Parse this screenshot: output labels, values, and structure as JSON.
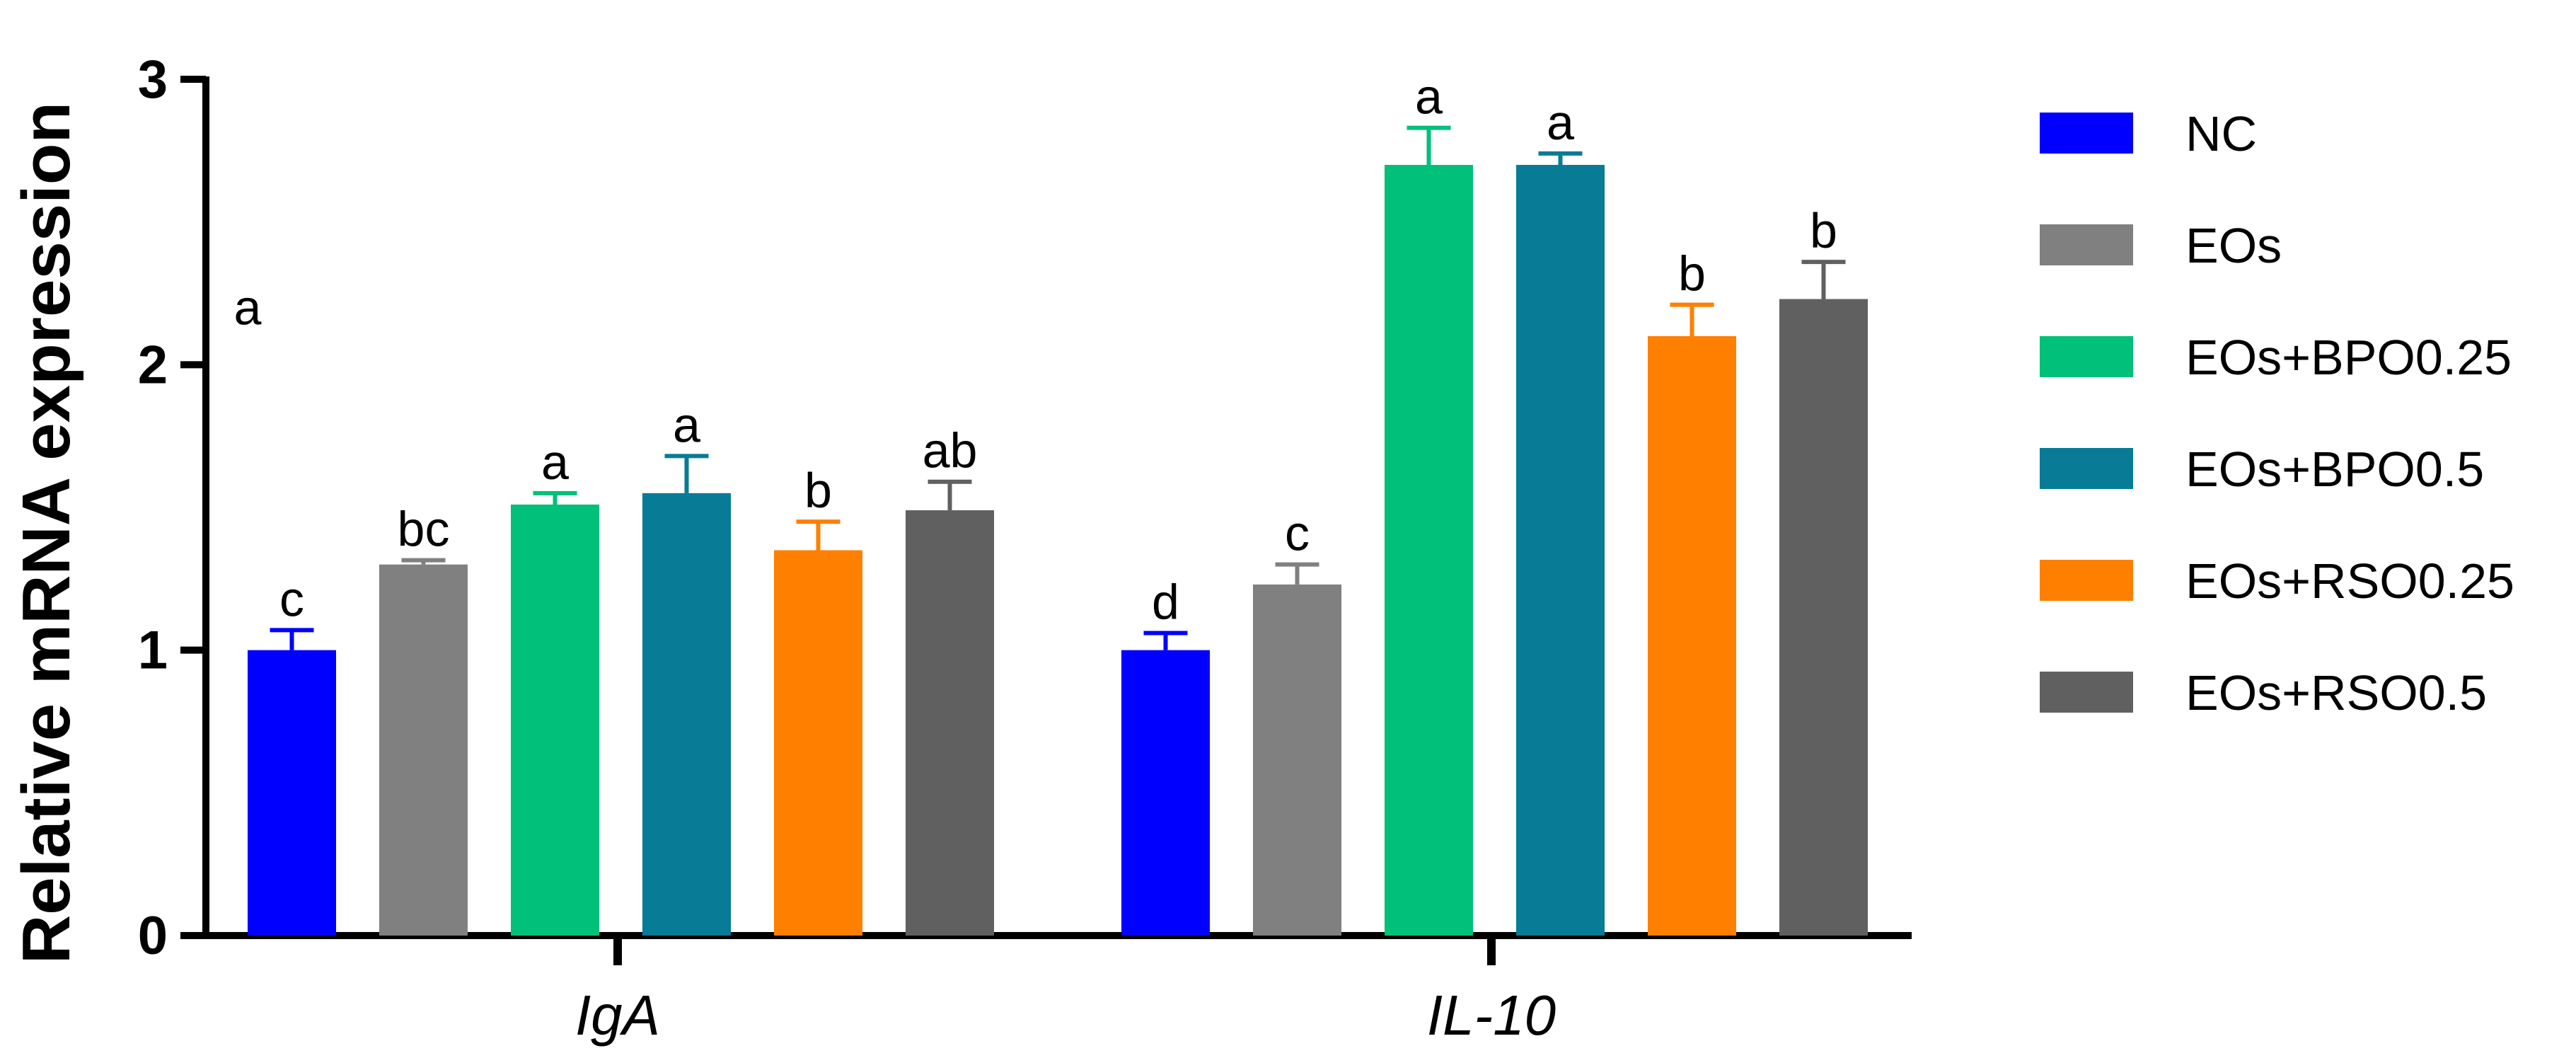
{
  "chart_data": {
    "type": "bar",
    "title": "",
    "xlabel": "",
    "ylabel": "Relative mRNA expression",
    "ylim": [
      0,
      3
    ],
    "yticks": [
      "0",
      "1",
      "2",
      "3"
    ],
    "grid": false,
    "legend_position": "right",
    "categories": [
      "IgA",
      "IL-10"
    ],
    "series": [
      {
        "name": "NC",
        "color": "#0000ff",
        "values": [
          1.0,
          1.0
        ],
        "errors": [
          0.07,
          0.06
        ],
        "labels": [
          "c",
          "d"
        ]
      },
      {
        "name": "EOs",
        "color": "#808080",
        "values": [
          1.3,
          1.23
        ],
        "errors": [
          0.015,
          0.07
        ],
        "labels": [
          "bc",
          "c"
        ]
      },
      {
        "name": "EOs+BPO0.25",
        "color": "#00c07a",
        "values": [
          1.51,
          2.7
        ],
        "errors": [
          0.04,
          0.13
        ],
        "labels": [
          "a",
          "a"
        ]
      },
      {
        "name": "EOs+BPO0.5",
        "color": "#087b96",
        "values": [
          1.55,
          2.7
        ],
        "errors": [
          0.13,
          0.04
        ],
        "labels": [
          "a",
          "a"
        ]
      },
      {
        "name": "EOs+RSO0.25",
        "color": "#ff7f00",
        "values": [
          1.35,
          2.1
        ],
        "errors": [
          0.1,
          0.11
        ],
        "labels": [
          "b",
          "b"
        ]
      },
      {
        "name": "EOs+RSO0.5",
        "color": "#606060",
        "values": [
          1.49,
          2.23
        ],
        "errors": [
          0.1,
          0.13
        ],
        "labels": [
          "ab",
          "b"
        ]
      }
    ],
    "annotations": [
      {
        "text": "a",
        "y": 2.2
      }
    ]
  }
}
